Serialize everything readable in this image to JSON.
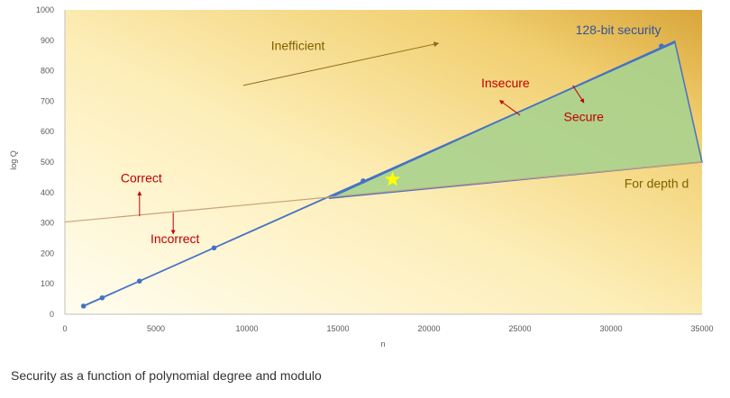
{
  "chart_data": {
    "type": "line",
    "xlabel": "n",
    "ylabel": "log Q",
    "xlim": [
      0,
      35000
    ],
    "ylim": [
      0,
      1000
    ],
    "xticks": [
      0,
      5000,
      10000,
      15000,
      20000,
      25000,
      30000,
      35000
    ],
    "yticks": [
      0,
      100,
      200,
      300,
      400,
      500,
      600,
      700,
      800,
      900,
      1000
    ],
    "grid": false,
    "legend": "none",
    "series": [
      {
        "key": "security",
        "color": "#4472c4",
        "points": [
          [
            1024,
            27
          ],
          [
            2048,
            54
          ],
          [
            4096,
            109
          ],
          [
            8192,
            218
          ],
          [
            16384,
            438
          ],
          [
            32768,
            881
          ]
        ],
        "line": [
          [
            1024,
            27
          ],
          [
            33500,
            893
          ]
        ]
      },
      {
        "key": "depth",
        "color": "#c8a27a",
        "line": [
          [
            0,
            303
          ],
          [
            35000,
            500
          ]
        ]
      }
    ],
    "region": {
      "color": "#a9d18e",
      "polygon": [
        [
          14500,
          381
        ],
        [
          33500,
          897
        ],
        [
          35000,
          500
        ]
      ]
    },
    "marker": {
      "x": 18000,
      "y": 443,
      "color": "#ffff00"
    },
    "annotations": {
      "inefficient": "Inefficient",
      "security_128": "128-bit security",
      "insecure": "Insecure",
      "secure": "Secure",
      "correct": "Correct",
      "incorrect": "Incorrect",
      "for_depth": "For depth d"
    },
    "colors": {
      "label_red": "#c00000",
      "label_olive": "#7f6000",
      "label_blue": "#2f5597",
      "arrow_red": "#c00000",
      "arrow_olive": "#8a6d1a"
    }
  },
  "caption": "Security as a function of polynomial degree and modulo"
}
